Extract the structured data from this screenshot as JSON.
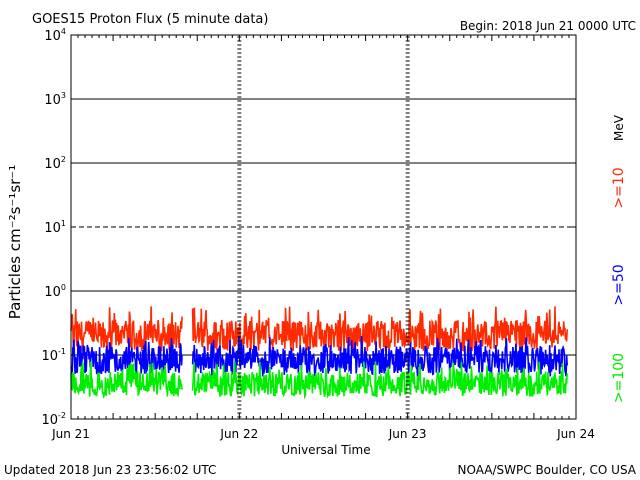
{
  "chart_data": {
    "type": "line",
    "title": "GOES15 Proton Flux (5 minute data)",
    "begin_label": "Begin: 2018 Jun 21 0000 UTC",
    "xlabel": "Universal Time",
    "ylabel": "Particles cm⁻²s⁻¹sr⁻¹",
    "y_scale": "log",
    "ylim": [
      0.01,
      10000
    ],
    "y_ticks": [
      {
        "base": "10",
        "exp": "4"
      },
      {
        "base": "10",
        "exp": "3"
      },
      {
        "base": "10",
        "exp": "2"
      },
      {
        "base": "10",
        "exp": "1"
      },
      {
        "base": "10",
        "exp": "0"
      },
      {
        "base": "10",
        "exp": "-1"
      },
      {
        "base": "10",
        "exp": "-2"
      }
    ],
    "x_ticks": [
      "Jun 21",
      "Jun 22",
      "Jun 23",
      "Jun 24"
    ],
    "unit_label": "MeV",
    "data_gap_days": [
      0.66,
      0.72
    ],
    "series": [
      {
        "name": ">=10",
        "color": "#ff2a00",
        "base": 0.2,
        "spread": [
          0.12,
          0.6
        ]
      },
      {
        "name": ">=50",
        "color": "#0000ff",
        "base": 0.085,
        "spread": [
          0.045,
          0.2
        ]
      },
      {
        "name": ">=100",
        "color": "#00ee00",
        "base": 0.035,
        "spread": [
          0.022,
          0.08
        ]
      }
    ]
  },
  "footer": {
    "updated": "Updated 2018 Jun 23 23:56:02 UTC",
    "source": "NOAA/SWPC Boulder, CO USA"
  }
}
